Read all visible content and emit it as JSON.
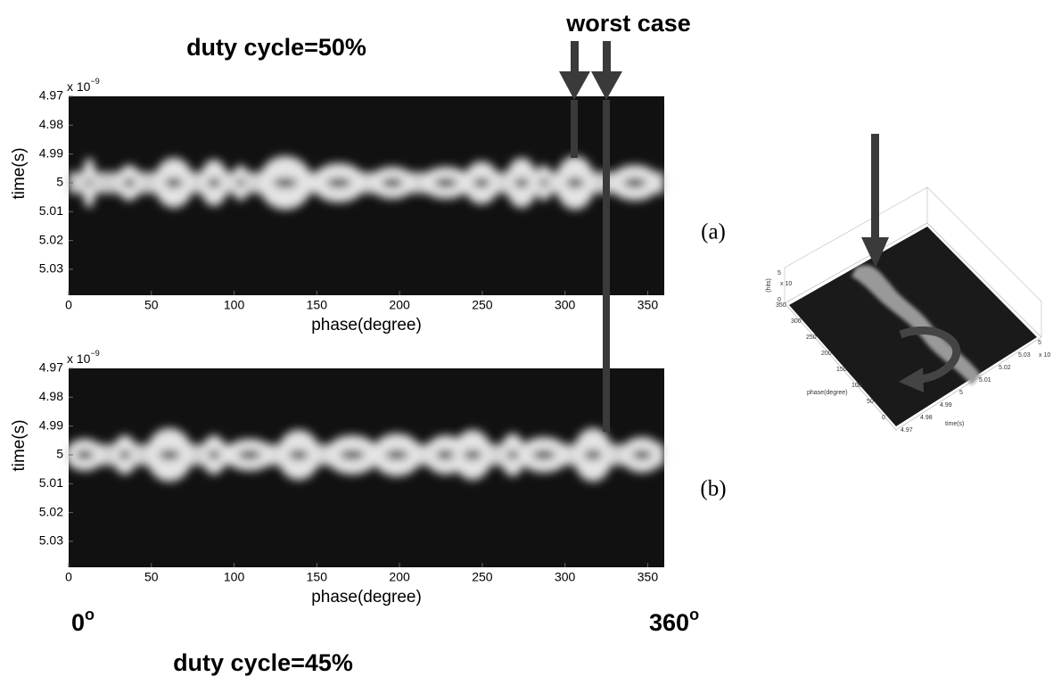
{
  "chart_data": [
    {
      "type": "heatmap",
      "title": "duty cycle=50%",
      "panel_label": "(a)",
      "xlabel": "phase(degree)",
      "ylabel": "time(s)",
      "xlim": [
        0,
        360
      ],
      "xticks": [
        0,
        50,
        100,
        150,
        200,
        250,
        300,
        350
      ],
      "ylim": [
        4.97e-09,
        5.039e-09
      ],
      "y_inverted": true,
      "yticks": [
        {
          "value": 4.97e-09,
          "label": "4.97"
        },
        {
          "value": 4.98e-09,
          "label": "4.98"
        },
        {
          "value": 4.99e-09,
          "label": "4.99"
        },
        {
          "value": 5e-09,
          "label": "5"
        },
        {
          "value": 5.01e-09,
          "label": "5.01"
        },
        {
          "value": 5.02e-09,
          "label": "5.02"
        },
        {
          "value": 5.03e-09,
          "label": "5.03"
        }
      ],
      "y_offset": {
        "base": "x 10",
        "exponent": "−9"
      }
    },
    {
      "type": "heatmap",
      "title": "duty cycle=45%",
      "panel_label": "(b)",
      "xlabel": "phase(degree)",
      "ylabel": "time(s)",
      "xlim": [
        0,
        360
      ],
      "xticks": [
        0,
        50,
        100,
        150,
        200,
        250,
        300,
        350
      ],
      "ylim": [
        4.97e-09,
        5.039e-09
      ],
      "y_inverted": true,
      "yticks": [
        {
          "value": 4.97e-09,
          "label": "4.97"
        },
        {
          "value": 4.98e-09,
          "label": "4.98"
        },
        {
          "value": 4.99e-09,
          "label": "4.99"
        },
        {
          "value": 5e-09,
          "label": "5"
        },
        {
          "value": 5.01e-09,
          "label": "5.01"
        },
        {
          "value": 5.02e-09,
          "label": "5.02"
        },
        {
          "value": 5.03e-09,
          "label": "5.03"
        }
      ],
      "y_offset": {
        "base": "x 10",
        "exponent": "−9"
      }
    }
  ],
  "annotations": {
    "worst_case": "worst case",
    "start": "0",
    "end": "360",
    "degree_mark": "o"
  },
  "inset": {
    "zlabel": "(hits)",
    "xlabel": "phase(degree)",
    "ylabel": "time(s)",
    "phase_ticks": [
      "350",
      "300",
      "250",
      "200",
      "150",
      "100",
      "50",
      "0"
    ],
    "time_ticks": [
      "4.97",
      "4.98",
      "4.99",
      "5",
      "5.01",
      "5.02",
      "5.03",
      "5"
    ],
    "z_ticks": [
      "5",
      "0"
    ],
    "offset": "x 10"
  }
}
